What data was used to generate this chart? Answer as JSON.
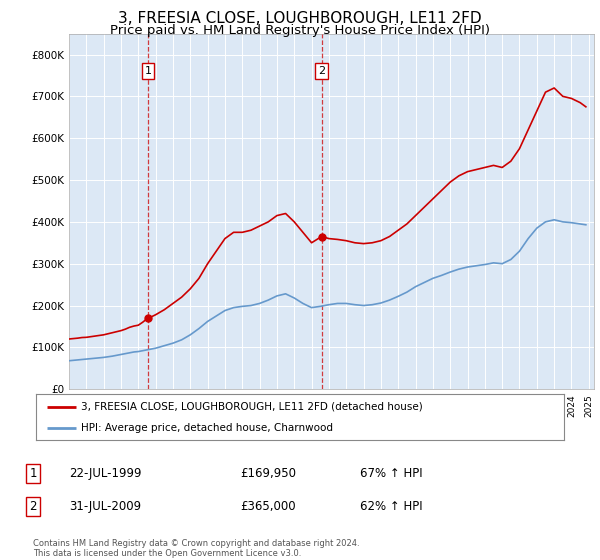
{
  "title": "3, FREESIA CLOSE, LOUGHBOROUGH, LE11 2FD",
  "subtitle": "Price paid vs. HM Land Registry's House Price Index (HPI)",
  "title_fontsize": 11,
  "subtitle_fontsize": 9.5,
  "background_color": "#ffffff",
  "plot_bg_color": "#dce8f5",
  "grid_color": "#ffffff",
  "red_line_color": "#cc0000",
  "blue_line_color": "#6699cc",
  "vline_color": "#cc0000",
  "ylim": [
    0,
    850000
  ],
  "yticks": [
    0,
    100000,
    200000,
    300000,
    400000,
    500000,
    600000,
    700000,
    800000
  ],
  "ytick_labels": [
    "£0",
    "£100K",
    "£200K",
    "£300K",
    "£400K",
    "£500K",
    "£600K",
    "£700K",
    "£800K"
  ],
  "sale1_year": 1999.55,
  "sale1_price": 169950,
  "sale2_year": 2009.58,
  "sale2_price": 365000,
  "legend_entry1": "3, FREESIA CLOSE, LOUGHBOROUGH, LE11 2FD (detached house)",
  "legend_entry2": "HPI: Average price, detached house, Charnwood",
  "annotation1_label": "1",
  "annotation1_date": "22-JUL-1999",
  "annotation1_price": "£169,950",
  "annotation1_hpi": "67% ↑ HPI",
  "annotation2_label": "2",
  "annotation2_date": "31-JUL-2009",
  "annotation2_price": "£365,000",
  "annotation2_hpi": "62% ↑ HPI",
  "footer": "Contains HM Land Registry data © Crown copyright and database right 2024.\nThis data is licensed under the Open Government Licence v3.0.",
  "hpi_red_data": [
    [
      1995.0,
      120000
    ],
    [
      1995.25,
      121000
    ],
    [
      1995.5,
      122000
    ],
    [
      1995.75,
      123500
    ],
    [
      1996.0,
      124000
    ],
    [
      1996.25,
      125500
    ],
    [
      1996.5,
      127000
    ],
    [
      1996.75,
      128500
    ],
    [
      1997.0,
      130000
    ],
    [
      1997.25,
      132500
    ],
    [
      1997.5,
      135000
    ],
    [
      1997.75,
      137500
    ],
    [
      1998.0,
      140000
    ],
    [
      1998.25,
      143500
    ],
    [
      1998.5,
      148000
    ],
    [
      1998.75,
      151000
    ],
    [
      1999.0,
      153000
    ],
    [
      1999.25,
      160000
    ],
    [
      1999.55,
      169950
    ],
    [
      1999.75,
      173000
    ],
    [
      2000.0,
      178000
    ],
    [
      2000.5,
      190000
    ],
    [
      2001.0,
      205000
    ],
    [
      2001.5,
      220000
    ],
    [
      2002.0,
      240000
    ],
    [
      2002.5,
      265000
    ],
    [
      2003.0,
      300000
    ],
    [
      2003.5,
      330000
    ],
    [
      2004.0,
      360000
    ],
    [
      2004.5,
      375000
    ],
    [
      2005.0,
      375000
    ],
    [
      2005.5,
      380000
    ],
    [
      2006.0,
      390000
    ],
    [
      2006.5,
      400000
    ],
    [
      2007.0,
      415000
    ],
    [
      2007.5,
      420000
    ],
    [
      2008.0,
      400000
    ],
    [
      2008.5,
      375000
    ],
    [
      2009.0,
      350000
    ],
    [
      2009.58,
      365000
    ],
    [
      2010.0,
      360000
    ],
    [
      2010.5,
      358000
    ],
    [
      2011.0,
      355000
    ],
    [
      2011.5,
      350000
    ],
    [
      2012.0,
      348000
    ],
    [
      2012.5,
      350000
    ],
    [
      2013.0,
      355000
    ],
    [
      2013.5,
      365000
    ],
    [
      2014.0,
      380000
    ],
    [
      2014.5,
      395000
    ],
    [
      2015.0,
      415000
    ],
    [
      2015.5,
      435000
    ],
    [
      2016.0,
      455000
    ],
    [
      2016.5,
      475000
    ],
    [
      2017.0,
      495000
    ],
    [
      2017.5,
      510000
    ],
    [
      2018.0,
      520000
    ],
    [
      2018.5,
      525000
    ],
    [
      2019.0,
      530000
    ],
    [
      2019.5,
      535000
    ],
    [
      2020.0,
      530000
    ],
    [
      2020.5,
      545000
    ],
    [
      2021.0,
      575000
    ],
    [
      2021.5,
      620000
    ],
    [
      2022.0,
      665000
    ],
    [
      2022.5,
      710000
    ],
    [
      2023.0,
      720000
    ],
    [
      2023.5,
      700000
    ],
    [
      2024.0,
      695000
    ],
    [
      2024.5,
      685000
    ],
    [
      2024.83,
      675000
    ]
  ],
  "hpi_blue_data": [
    [
      1995.0,
      68000
    ],
    [
      1995.25,
      69000
    ],
    [
      1995.5,
      70000
    ],
    [
      1995.75,
      71000
    ],
    [
      1996.0,
      72000
    ],
    [
      1996.25,
      73000
    ],
    [
      1996.5,
      74000
    ],
    [
      1996.75,
      75000
    ],
    [
      1997.0,
      76000
    ],
    [
      1997.25,
      77500
    ],
    [
      1997.5,
      79000
    ],
    [
      1997.75,
      81000
    ],
    [
      1998.0,
      83000
    ],
    [
      1998.25,
      85000
    ],
    [
      1998.5,
      87000
    ],
    [
      1998.75,
      89000
    ],
    [
      1999.0,
      90000
    ],
    [
      1999.5,
      94000
    ],
    [
      2000.0,
      98000
    ],
    [
      2000.5,
      104000
    ],
    [
      2001.0,
      110000
    ],
    [
      2001.5,
      118000
    ],
    [
      2002.0,
      130000
    ],
    [
      2002.5,
      145000
    ],
    [
      2003.0,
      162000
    ],
    [
      2003.5,
      175000
    ],
    [
      2004.0,
      188000
    ],
    [
      2004.5,
      195000
    ],
    [
      2005.0,
      198000
    ],
    [
      2005.5,
      200000
    ],
    [
      2006.0,
      205000
    ],
    [
      2006.5,
      213000
    ],
    [
      2007.0,
      223000
    ],
    [
      2007.5,
      228000
    ],
    [
      2008.0,
      218000
    ],
    [
      2008.5,
      205000
    ],
    [
      2009.0,
      195000
    ],
    [
      2009.5,
      198000
    ],
    [
      2010.0,
      202000
    ],
    [
      2010.5,
      205000
    ],
    [
      2011.0,
      205000
    ],
    [
      2011.5,
      202000
    ],
    [
      2012.0,
      200000
    ],
    [
      2012.5,
      202000
    ],
    [
      2013.0,
      206000
    ],
    [
      2013.5,
      213000
    ],
    [
      2014.0,
      222000
    ],
    [
      2014.5,
      232000
    ],
    [
      2015.0,
      245000
    ],
    [
      2015.5,
      255000
    ],
    [
      2016.0,
      265000
    ],
    [
      2016.5,
      272000
    ],
    [
      2017.0,
      280000
    ],
    [
      2017.5,
      287000
    ],
    [
      2018.0,
      292000
    ],
    [
      2018.5,
      295000
    ],
    [
      2019.0,
      298000
    ],
    [
      2019.5,
      302000
    ],
    [
      2020.0,
      300000
    ],
    [
      2020.5,
      310000
    ],
    [
      2021.0,
      330000
    ],
    [
      2021.5,
      360000
    ],
    [
      2022.0,
      385000
    ],
    [
      2022.5,
      400000
    ],
    [
      2023.0,
      405000
    ],
    [
      2023.5,
      400000
    ],
    [
      2024.0,
      398000
    ],
    [
      2024.5,
      395000
    ],
    [
      2024.83,
      393000
    ]
  ]
}
